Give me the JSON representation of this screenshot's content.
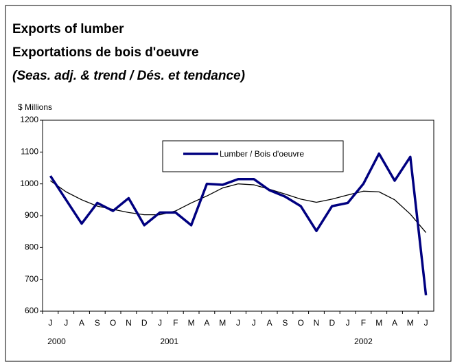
{
  "chart_data": {
    "type": "line",
    "title": "Exports of lumber",
    "subtitle": "Exportations de bois d'oeuvre",
    "note": "(Seas. adj. & trend / Dés. et tendance)",
    "y_label": "$ Millions",
    "categories": [
      "J",
      "J",
      "A",
      "S",
      "O",
      "N",
      "D",
      "J",
      "F",
      "M",
      "A",
      "M",
      "J",
      "J",
      "A",
      "S",
      "O",
      "N",
      "D",
      "J",
      "F",
      "M",
      "A",
      "M",
      "J"
    ],
    "years": [
      "2000",
      "2001",
      "2002"
    ],
    "series": [
      {
        "name": "Lumber / Bois d'oeuvre",
        "color": "#000080",
        "width": 3.5,
        "values": [
          1025,
          950,
          875,
          940,
          915,
          955,
          870,
          910,
          910,
          870,
          1000,
          997,
          1015,
          1015,
          980,
          960,
          930,
          852,
          930,
          940,
          1000,
          1095,
          1010,
          1085,
          650
        ]
      },
      {
        "color": "#000000",
        "width": 1.3,
        "values": [
          1010,
          975,
          950,
          930,
          920,
          910,
          903,
          903,
          915,
          940,
          962,
          987,
          1000,
          997,
          983,
          968,
          952,
          942,
          952,
          965,
          977,
          975,
          950,
          905,
          847
        ]
      }
    ],
    "ylim": [
      600,
      1200
    ],
    "yticks": [
      600,
      700,
      800,
      900,
      1000,
      1100,
      1200
    ]
  }
}
